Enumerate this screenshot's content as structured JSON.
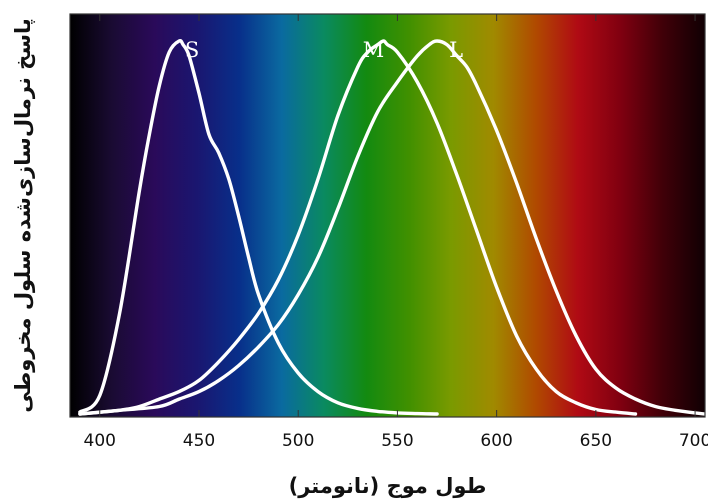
{
  "chart_data": {
    "type": "line",
    "title": "",
    "xlabel": "طول موج (نانومتر)",
    "ylabel": "پاسخ نرمال‌سازی‌شده سلول مخروطی",
    "xlim": [
      385,
      705
    ],
    "ylim": [
      0,
      1.0
    ],
    "xticks": [
      "400",
      "450",
      "500",
      "550",
      "600",
      "650",
      "700"
    ],
    "grid": false,
    "background": "visible spectrum gradient",
    "spectrum_colors": [
      "#000000",
      "#1a0b33",
      "#2a0a5a",
      "#1a1670",
      "#082f8a",
      "#0a6aa0",
      "#0a8a60",
      "#138a10",
      "#409000",
      "#7a9a00",
      "#a08a00",
      "#b04a00",
      "#b00a14",
      "#800010",
      "#400008",
      "#100003"
    ],
    "curve_color": "#ffffff",
    "series": [
      {
        "name": "S",
        "x": [
          390,
          400,
          410,
          420,
          425,
          430,
          435,
          440,
          442,
          445,
          450,
          455,
          460,
          465,
          470,
          475,
          480,
          490,
          500,
          510,
          520,
          530,
          540,
          550,
          560,
          570
        ],
        "values": [
          0.005,
          0.05,
          0.27,
          0.6,
          0.75,
          0.88,
          0.97,
          1.0,
          0.99,
          0.96,
          0.86,
          0.75,
          0.7,
          0.63,
          0.53,
          0.42,
          0.32,
          0.19,
          0.11,
          0.06,
          0.03,
          0.015,
          0.007,
          0.003,
          0.001,
          0.0
        ]
      },
      {
        "name": "M",
        "x": [
          390,
          410,
          420,
          430,
          440,
          450,
          460,
          470,
          480,
          490,
          500,
          510,
          520,
          530,
          535,
          540,
          543,
          545,
          550,
          560,
          570,
          580,
          590,
          600,
          610,
          620,
          630,
          640,
          650,
          660,
          670
        ],
        "values": [
          0.0,
          0.01,
          0.02,
          0.04,
          0.06,
          0.09,
          0.14,
          0.2,
          0.27,
          0.36,
          0.48,
          0.63,
          0.8,
          0.93,
          0.97,
          0.99,
          1.0,
          0.99,
          0.97,
          0.89,
          0.78,
          0.64,
          0.49,
          0.34,
          0.21,
          0.12,
          0.06,
          0.03,
          0.012,
          0.005,
          0.0
        ]
      },
      {
        "name": "L",
        "x": [
          390,
          410,
          430,
          440,
          450,
          460,
          470,
          480,
          490,
          500,
          510,
          520,
          530,
          540,
          550,
          560,
          566,
          570,
          575,
          580,
          585,
          590,
          600,
          610,
          620,
          630,
          640,
          650,
          660,
          670,
          680,
          690,
          700,
          705
        ],
        "values": [
          0.0,
          0.01,
          0.02,
          0.04,
          0.06,
          0.09,
          0.13,
          0.18,
          0.24,
          0.32,
          0.42,
          0.55,
          0.69,
          0.81,
          0.89,
          0.96,
          0.99,
          1.0,
          0.99,
          0.96,
          0.93,
          0.88,
          0.76,
          0.62,
          0.47,
          0.33,
          0.21,
          0.12,
          0.07,
          0.04,
          0.02,
          0.01,
          0.003,
          0.0
        ]
      }
    ]
  }
}
